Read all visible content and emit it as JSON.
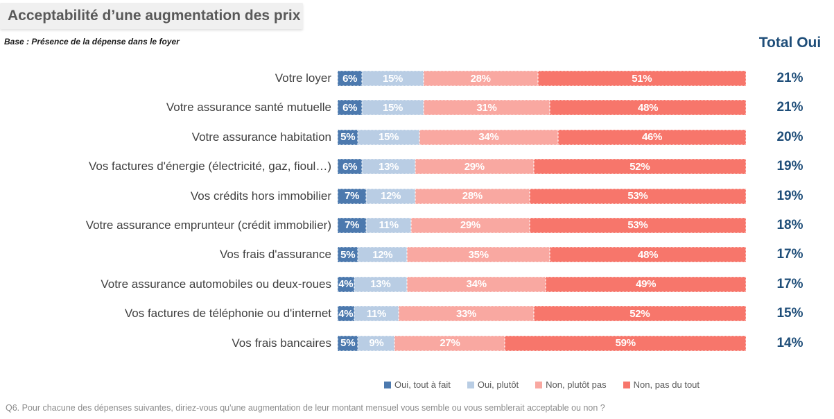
{
  "header": {
    "title": "Acceptabilité d’une augmentation des prix",
    "base_note": "Base : Présence de la dépense dans le foyer"
  },
  "total_column": {
    "header": "Total Oui"
  },
  "chart_data": {
    "type": "bar",
    "stacked": true,
    "orientation": "horizontal",
    "title": "Acceptabilité d’une augmentation des prix",
    "base_note": "Base : Présence de la dépense dans le foyer",
    "xlim": [
      0,
      100
    ],
    "value_suffix": "%",
    "legend_position": "bottom",
    "categories": [
      "Votre loyer",
      "Votre assurance santé mutuelle",
      "Votre assurance habitation",
      "Vos factures d'énergie (électricité, gaz, fioul…)",
      "Vos crédits hors immobilier",
      "Votre assurance emprunteur (crédit immobilier)",
      "Vos frais d'assurance",
      "Votre assurance automobiles ou deux-roues",
      "Vos factures de téléphonie ou d'internet",
      "Vos frais bancaires"
    ],
    "series": [
      {
        "name": "Oui, tout à fait",
        "color": "#4c79ae",
        "values": [
          6,
          6,
          5,
          6,
          7,
          7,
          5,
          4,
          4,
          5
        ]
      },
      {
        "name": "Oui, plutôt",
        "color": "#b9cde4",
        "values": [
          15,
          15,
          15,
          13,
          12,
          11,
          12,
          13,
          11,
          9
        ]
      },
      {
        "name": "Non, plutôt pas",
        "color": "#f9a8a1",
        "values": [
          28,
          31,
          34,
          29,
          28,
          29,
          35,
          34,
          33,
          27
        ]
      },
      {
        "name": "Non, pas du tout",
        "color": "#f7766b",
        "values": [
          51,
          48,
          46,
          52,
          53,
          53,
          48,
          49,
          52,
          59
        ]
      }
    ],
    "totals": [
      "21%",
      "21%",
      "20%",
      "19%",
      "19%",
      "18%",
      "17%",
      "17%",
      "15%",
      "14%"
    ],
    "total_header": "Total Oui"
  },
  "footer": {
    "question": "Q6. Pour chacune des dépenses suivantes, diriez-vous qu'une augmentation de leur montant mensuel vous semble ou vous semblerait acceptable ou non ?"
  }
}
